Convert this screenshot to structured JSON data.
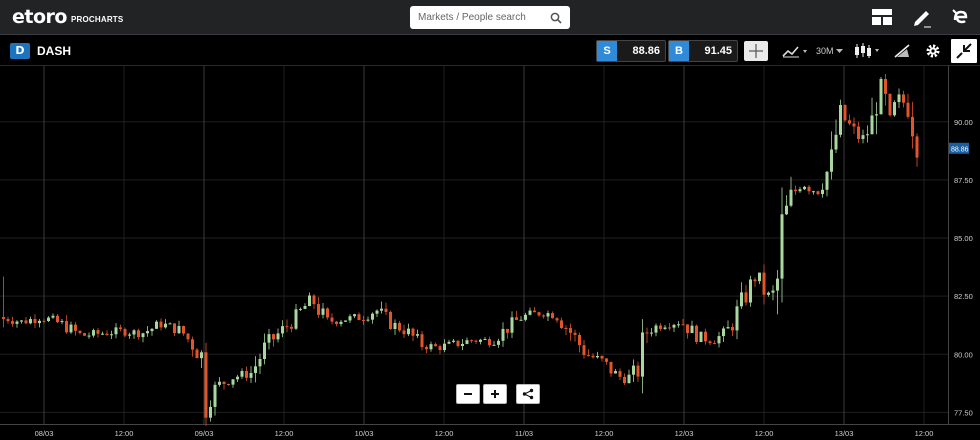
{
  "header": {
    "brand": "etoro",
    "brand_sub": "PROCHARTS",
    "search_placeholder": "Markets / People search",
    "icons": [
      "layout-icon",
      "pencil-icon",
      "etoro-e-icon"
    ]
  },
  "instrument": {
    "symbol": "DASH",
    "icon_letter": "D",
    "sell_label": "S",
    "sell_price": "88.86",
    "buy_label": "B",
    "buy_price": "91.45"
  },
  "toolbar": {
    "interval": "30M"
  },
  "chart_data": {
    "type": "candlestick",
    "instrument": "DASH",
    "interval": "30M",
    "y_ticks": [
      "90.00",
      "87.50",
      "85.00",
      "82.50",
      "80.00",
      "77.50"
    ],
    "x_ticks": [
      "08/03",
      "12:00",
      "09/03",
      "12:00",
      "10/03",
      "12:00",
      "11/03",
      "12:00",
      "12/03",
      "12:00",
      "13/03",
      "12:00"
    ],
    "ylim": [
      77.0,
      92.4
    ],
    "current_price": "88.86",
    "grid": true,
    "colors": {
      "up": "#a8d8a0",
      "down": "#e2552a",
      "price_tag": "#1a5fa0"
    },
    "price_path": [
      [
        0,
        81.6
      ],
      [
        20,
        81.4
      ],
      [
        40,
        81.6
      ],
      [
        60,
        81.3
      ],
      [
        80,
        80.8
      ],
      [
        100,
        80.9
      ],
      [
        120,
        81.0
      ],
      [
        140,
        80.9
      ],
      [
        160,
        81.3
      ],
      [
        180,
        81.0
      ],
      [
        195,
        80.2
      ],
      [
        200,
        79.8
      ],
      [
        205,
        77.8
      ],
      [
        215,
        78.6
      ],
      [
        230,
        79.0
      ],
      [
        250,
        79.2
      ],
      [
        265,
        80.4
      ],
      [
        280,
        81.0
      ],
      [
        295,
        81.6
      ],
      [
        310,
        82.4
      ],
      [
        325,
        81.4
      ],
      [
        340,
        81.5
      ],
      [
        360,
        81.6
      ],
      [
        375,
        81.9
      ],
      [
        390,
        81.3
      ],
      [
        405,
        81.0
      ],
      [
        420,
        80.4
      ],
      [
        435,
        80.3
      ],
      [
        450,
        80.4
      ],
      [
        470,
        80.6
      ],
      [
        490,
        80.6
      ],
      [
        505,
        81.1
      ],
      [
        520,
        81.6
      ],
      [
        540,
        81.8
      ],
      [
        555,
        81.7
      ],
      [
        570,
        80.9
      ],
      [
        585,
        80.0
      ],
      [
        600,
        79.7
      ],
      [
        615,
        79.1
      ],
      [
        625,
        78.9
      ],
      [
        637,
        79.4
      ],
      [
        645,
        81.0
      ],
      [
        660,
        81.3
      ],
      [
        680,
        81.4
      ],
      [
        695,
        80.8
      ],
      [
        710,
        80.6
      ],
      [
        725,
        80.9
      ],
      [
        745,
        82.6
      ],
      [
        755,
        83.4
      ],
      [
        765,
        82.5
      ],
      [
        775,
        82.6
      ],
      [
        781,
        85.5
      ],
      [
        790,
        86.8
      ],
      [
        800,
        87.4
      ],
      [
        815,
        87.0
      ],
      [
        830,
        88.2
      ],
      [
        838,
        90.4
      ],
      [
        850,
        89.7
      ],
      [
        860,
        89.2
      ],
      [
        870,
        89.8
      ],
      [
        878,
        91.8
      ],
      [
        888,
        90.0
      ],
      [
        898,
        91.0
      ],
      [
        908,
        90.6
      ],
      [
        915,
        89.2
      ],
      [
        918,
        88.86
      ]
    ]
  }
}
